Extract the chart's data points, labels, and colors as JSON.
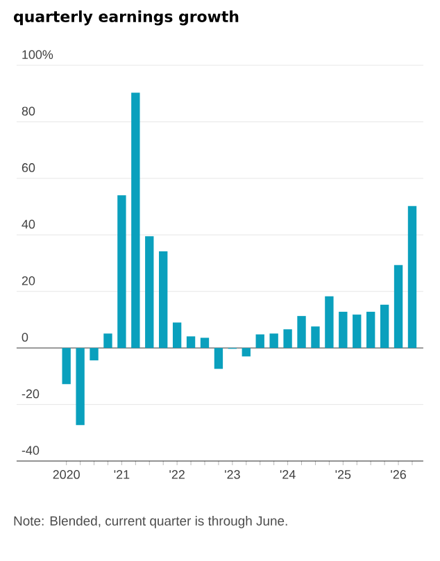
{
  "chart_data": {
    "type": "bar",
    "title": "quarterly earnings growth",
    "categories": [
      "2020",
      null,
      null,
      null,
      "'21",
      null,
      null,
      null,
      "'22",
      null,
      null,
      null,
      "'23",
      null,
      null,
      null,
      "'24",
      null,
      null,
      null,
      "'25",
      null,
      null,
      null,
      "'26",
      null
    ],
    "values": [
      -12.8,
      -27.3,
      -4.4,
      5.1,
      54,
      90.3,
      39.5,
      34.2,
      9.0,
      4.1,
      3.6,
      -7.4,
      -0.3,
      -3.0,
      4.8,
      5.1,
      6.6,
      11.3,
      7.6,
      18.3,
      12.8,
      11.8,
      12.8,
      15.3,
      29.3,
      50.2
    ],
    "color": "#0aa0bd",
    "ylim": [
      -40,
      100
    ],
    "yticks": [
      -40,
      -20,
      0,
      20,
      40,
      60,
      80,
      {
        "value": 100,
        "label": "100%"
      }
    ],
    "grid": "y",
    "annotations": [
      "Note: Blended, current quarter is through June."
    ]
  }
}
